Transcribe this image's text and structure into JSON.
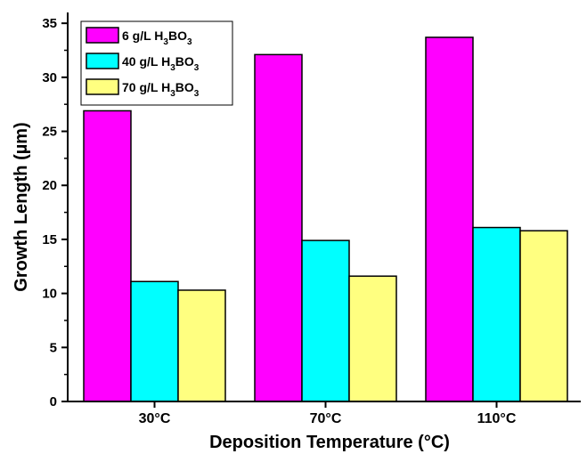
{
  "chart_data": {
    "type": "bar",
    "categories": [
      "30°C",
      "70°C",
      "110°C"
    ],
    "series": [
      {
        "name": "6 g/L H3BO3",
        "label_main": "6 g/L H",
        "label_parts": [
          "3",
          "BO",
          "3"
        ],
        "color": "#ff00ff",
        "values": [
          26.9,
          32.1,
          33.7
        ]
      },
      {
        "name": "40 g/L H3BO3",
        "label_main": "40 g/L H",
        "label_parts": [
          "3",
          "BO",
          "3"
        ],
        "color": "#00ffff",
        "values": [
          11.1,
          14.9,
          16.1
        ]
      },
      {
        "name": "70 g/L H3BO3",
        "label_main": "70 g/L H",
        "label_parts": [
          "3",
          "BO",
          "3"
        ],
        "color": "#ffff80",
        "values": [
          10.3,
          11.6,
          15.8
        ]
      }
    ],
    "xlabel": "Deposition Temperature (°C)",
    "ylabel": "Growth Length (µm)",
    "ylim": [
      0,
      36
    ],
    "yticks": [
      0,
      5,
      10,
      15,
      20,
      25,
      30,
      35
    ],
    "legend": "top-left",
    "grid": false
  }
}
